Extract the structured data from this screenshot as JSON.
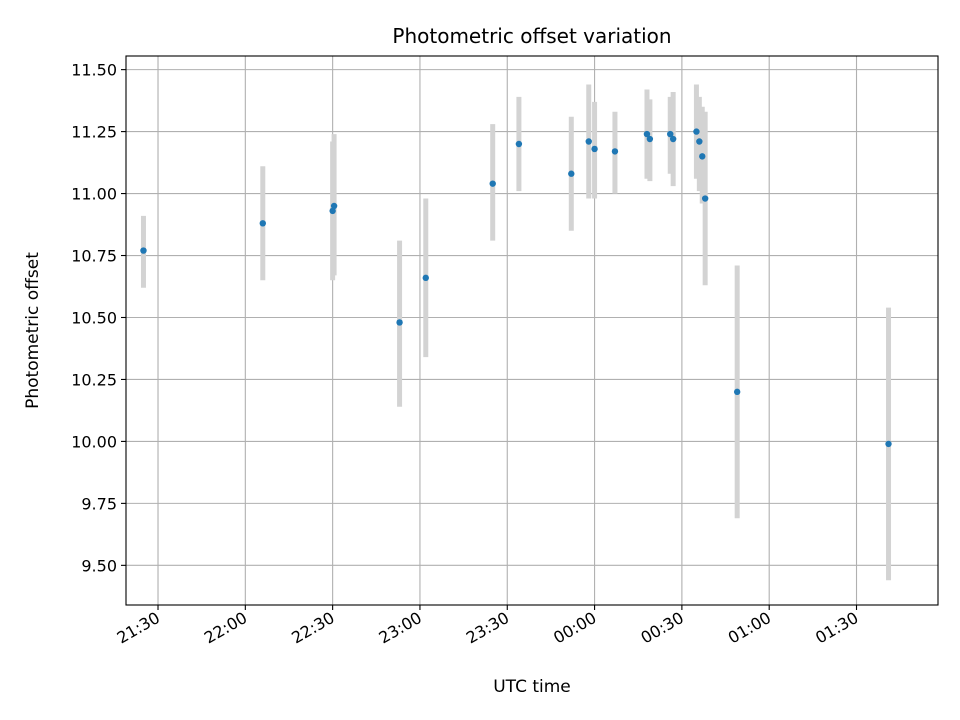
{
  "chart_data": {
    "type": "scatter",
    "title": "Photometric offset variation",
    "xlabel": "UTC time",
    "ylabel": "Photometric offset",
    "grid": true,
    "x_axis": {
      "type": "time",
      "range": [
        "2000-01-01T21:19:00",
        "2000-01-02T01:58:00"
      ],
      "ticks": [
        {
          "t": "2000-01-01T21:30:00",
          "label": "21:30"
        },
        {
          "t": "2000-01-01T22:00:00",
          "label": "22:00"
        },
        {
          "t": "2000-01-01T22:30:00",
          "label": "22:30"
        },
        {
          "t": "2000-01-01T23:00:00",
          "label": "23:00"
        },
        {
          "t": "2000-01-01T23:30:00",
          "label": "23:30"
        },
        {
          "t": "2000-01-02T00:00:00",
          "label": "00:00"
        },
        {
          "t": "2000-01-02T00:30:00",
          "label": "00:30"
        },
        {
          "t": "2000-01-02T01:00:00",
          "label": "01:00"
        },
        {
          "t": "2000-01-02T01:30:00",
          "label": "01:30"
        }
      ]
    },
    "y_axis": {
      "range": [
        9.34,
        11.555
      ],
      "ticks": [
        9.5,
        9.75,
        10.0,
        10.25,
        10.5,
        10.75,
        11.0,
        11.25,
        11.5
      ],
      "tick_labels": [
        "9.50",
        "9.75",
        "10.00",
        "10.25",
        "10.50",
        "10.75",
        "11.00",
        "11.25",
        "11.50"
      ]
    },
    "point_color": "#1f77b4",
    "errorbar_color": "#d3d3d3",
    "points": [
      {
        "t": "2000-01-01T21:25:00",
        "y": 10.77,
        "lo": 10.62,
        "hi": 10.91
      },
      {
        "t": "2000-01-01T22:06:00",
        "y": 10.88,
        "lo": 10.65,
        "hi": 11.11
      },
      {
        "t": "2000-01-01T22:30:00",
        "y": 10.93,
        "lo": 10.65,
        "hi": 11.21
      },
      {
        "t": "2000-01-01T22:30:30",
        "y": 10.95,
        "lo": 10.67,
        "hi": 11.24
      },
      {
        "t": "2000-01-01T22:53:00",
        "y": 10.48,
        "lo": 10.14,
        "hi": 10.81
      },
      {
        "t": "2000-01-01T23:02:00",
        "y": 10.66,
        "lo": 10.34,
        "hi": 10.98
      },
      {
        "t": "2000-01-01T23:25:00",
        "y": 11.04,
        "lo": 10.81,
        "hi": 11.28
      },
      {
        "t": "2000-01-01T23:34:00",
        "y": 11.2,
        "lo": 11.01,
        "hi": 11.39
      },
      {
        "t": "2000-01-01T23:52:00",
        "y": 11.08,
        "lo": 10.85,
        "hi": 11.31
      },
      {
        "t": "2000-01-01T23:58:00",
        "y": 11.21,
        "lo": 10.98,
        "hi": 11.44
      },
      {
        "t": "2000-01-02T00:00:00",
        "y": 11.18,
        "lo": 10.98,
        "hi": 11.37
      },
      {
        "t": "2000-01-02T00:07:00",
        "y": 11.17,
        "lo": 11.0,
        "hi": 11.33
      },
      {
        "t": "2000-01-02T00:18:00",
        "y": 11.24,
        "lo": 11.06,
        "hi": 11.42
      },
      {
        "t": "2000-01-02T00:19:00",
        "y": 11.22,
        "lo": 11.05,
        "hi": 11.38
      },
      {
        "t": "2000-01-02T00:26:00",
        "y": 11.24,
        "lo": 11.08,
        "hi": 11.39
      },
      {
        "t": "2000-01-02T00:27:00",
        "y": 11.22,
        "lo": 11.03,
        "hi": 11.41
      },
      {
        "t": "2000-01-02T00:35:00",
        "y": 11.25,
        "lo": 11.06,
        "hi": 11.44
      },
      {
        "t": "2000-01-02T00:36:00",
        "y": 11.21,
        "lo": 11.01,
        "hi": 11.39
      },
      {
        "t": "2000-01-02T00:37:00",
        "y": 11.15,
        "lo": 10.96,
        "hi": 11.35
      },
      {
        "t": "2000-01-02T00:38:00",
        "y": 10.98,
        "lo": 10.63,
        "hi": 11.33
      },
      {
        "t": "2000-01-02T00:49:00",
        "y": 10.2,
        "lo": 9.69,
        "hi": 10.71
      },
      {
        "t": "2000-01-02T01:41:00",
        "y": 9.99,
        "lo": 9.44,
        "hi": 10.54
      }
    ]
  }
}
